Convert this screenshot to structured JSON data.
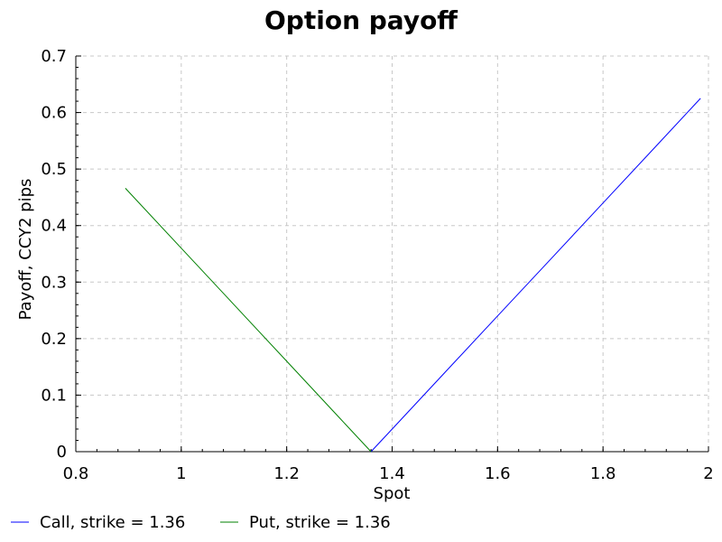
{
  "chart_data": {
    "type": "line",
    "title": "Option payoff",
    "xlabel": "Spot",
    "ylabel": "Payoff, CCY2 pips",
    "xlim": [
      0.8,
      2.0
    ],
    "ylim": [
      0,
      0.7
    ],
    "xticks": [
      0.8,
      1.0,
      1.2,
      1.4,
      1.6,
      1.8,
      2.0
    ],
    "xtick_labels": [
      "0.8",
      "1",
      "1.2",
      "1.4",
      "1.6",
      "1.8",
      "2"
    ],
    "yticks": [
      0,
      0.1,
      0.2,
      0.3,
      0.4,
      0.5,
      0.6,
      0.7
    ],
    "ytick_labels": [
      "0",
      "0.1",
      "0.2",
      "0.3",
      "0.4",
      "0.5",
      "0.6",
      "0.7"
    ],
    "grid": true,
    "legend_position": "bottom-left",
    "series": [
      {
        "name": "Call, strike = 1.36",
        "color": "#0000ff",
        "x": [
          1.36,
          1.4,
          1.5,
          1.6,
          1.7,
          1.8,
          1.9,
          1.985
        ],
        "y": [
          0.0,
          0.04,
          0.14,
          0.24,
          0.34,
          0.44,
          0.54,
          0.625
        ]
      },
      {
        "name": "Put, strike = 1.36",
        "color": "#008000",
        "x": [
          0.894,
          1.0,
          1.1,
          1.2,
          1.3,
          1.36
        ],
        "y": [
          0.466,
          0.36,
          0.26,
          0.16,
          0.06,
          0.0
        ]
      }
    ]
  }
}
